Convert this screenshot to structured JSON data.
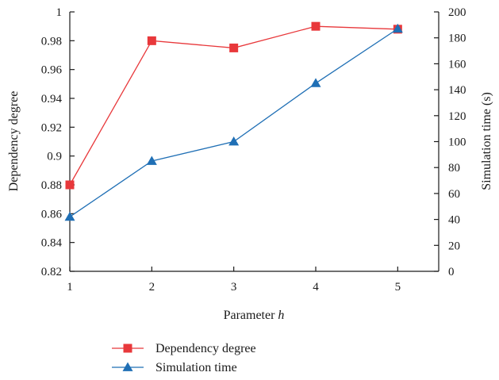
{
  "chart_data": {
    "type": "line",
    "x": [
      1,
      2,
      3,
      4,
      5
    ],
    "xlabel_prefix": "Parameter ",
    "xlabel_var": "h",
    "ylabel_left": "Dependency degree",
    "ylabel_right": "Simulation time (s)",
    "xlim": [
      1,
      5.5
    ],
    "ylim_left": [
      0.82,
      1
    ],
    "ylim_right": [
      0,
      200
    ],
    "x_ticks": [
      "1",
      "2",
      "3",
      "4",
      "5"
    ],
    "y_left_ticks": [
      "0.82",
      "0.84",
      "0.86",
      "0.88",
      "0.9",
      "0.92",
      "0.94",
      "0.96",
      "0.98",
      "1"
    ],
    "y_right_ticks": [
      "0",
      "20",
      "40",
      "60",
      "80",
      "100",
      "120",
      "140",
      "160",
      "180",
      "200"
    ],
    "grid": false,
    "legend_position": "bottom-left",
    "series": [
      {
        "name": "Dependency degree",
        "axis": "left",
        "marker": "square",
        "color": "#e8383b",
        "values": [
          0.88,
          0.98,
          0.975,
          0.99,
          0.988
        ]
      },
      {
        "name": "Simulation time",
        "axis": "right",
        "marker": "triangle",
        "color": "#1f6fb5",
        "values": [
          42,
          85,
          100,
          145,
          187
        ]
      }
    ]
  }
}
